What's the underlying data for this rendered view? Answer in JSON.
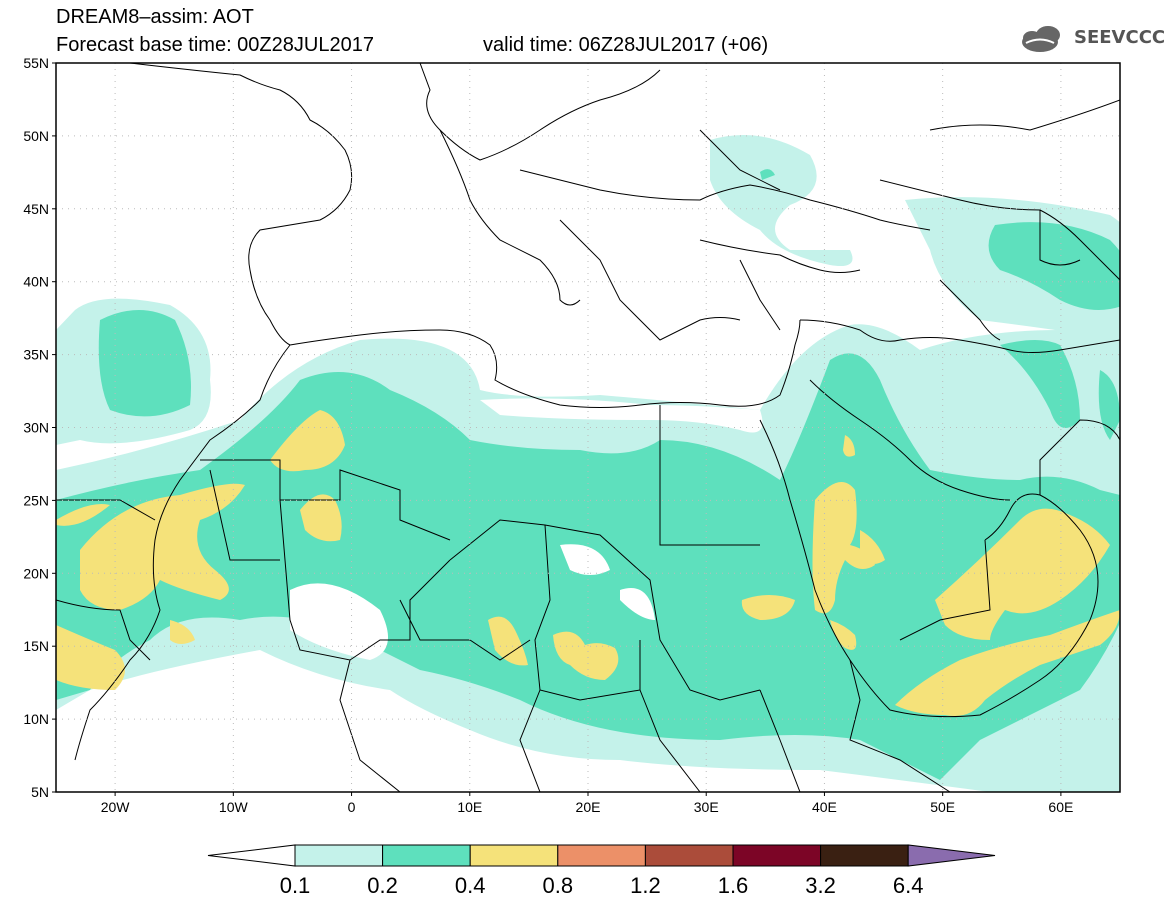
{
  "header": {
    "title": "DREAM8–assim: AOT",
    "base_time_label": "Forecast base time: 00Z28JUL2017",
    "valid_time_label": "valid time: 06Z28JUL2017 (+06)",
    "logo_text": "SEEVCCC"
  },
  "map": {
    "lon_range": [
      -25,
      65
    ],
    "lat_range": [
      5,
      55
    ],
    "lat_labels": [
      "55N",
      "50N",
      "45N",
      "40N",
      "35N",
      "30N",
      "25N",
      "20N",
      "15N",
      "10N",
      "5N"
    ],
    "lon_labels": [
      "20W",
      "10W",
      "0",
      "10E",
      "20E",
      "30E",
      "40E",
      "50E",
      "60E"
    ]
  },
  "colorbar": {
    "levels": [
      "0.1",
      "0.2",
      "0.4",
      "0.8",
      "1.2",
      "1.6",
      "3.2",
      "6.4"
    ],
    "colors": {
      "c01_02": "#c4f2ea",
      "c02_04": "#5ee0bd",
      "c04_08": "#f5e27a",
      "c08_12": "#ec9068",
      "c12_16": "#ab4c3a",
      "c16_32": "#7c0526",
      "c32_64": "#3a2012",
      "c64_up": "#8a6cae"
    }
  }
}
